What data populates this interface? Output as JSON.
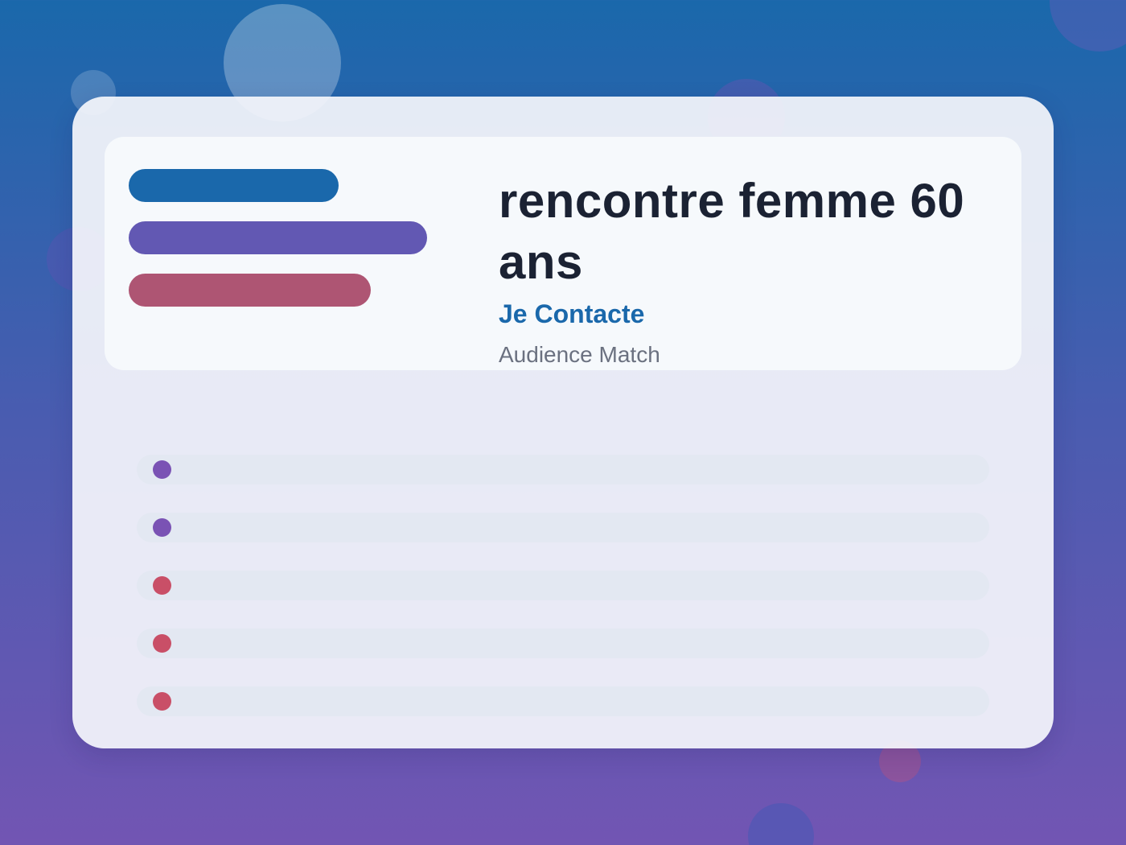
{
  "hero": {
    "title": "rencontre femme 60 ans",
    "brand": "Je Contacte",
    "subtitle": "Audience Match"
  },
  "colors": {
    "pill_blue": "#1a68ab",
    "pill_purple": "#6258b3",
    "pill_red": "#ae5573",
    "dot_purple": "#7a52b4",
    "dot_red": "#c94f67"
  },
  "rows": [
    {
      "dot_color": "#7a52b4"
    },
    {
      "dot_color": "#7a52b4"
    },
    {
      "dot_color": "#c94f67"
    },
    {
      "dot_color": "#c94f67"
    },
    {
      "dot_color": "#c94f67"
    }
  ]
}
